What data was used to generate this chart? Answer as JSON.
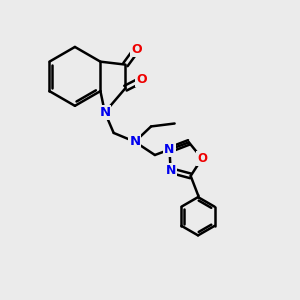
{
  "background_color": "#ebebeb",
  "bond_color": "#000000",
  "nitrogen_color": "#0000ee",
  "oxygen_color": "#ee0000",
  "line_width": 1.8,
  "figsize": [
    3.0,
    3.0
  ],
  "dpi": 100,
  "xlim": [
    0,
    10
  ],
  "ylim": [
    0,
    10
  ]
}
